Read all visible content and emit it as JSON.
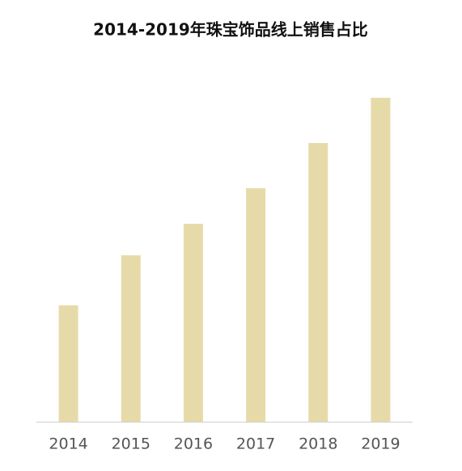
{
  "chart_data": {
    "type": "bar",
    "title": "2014-2019年珠宝饰品线上销售占比",
    "categories": [
      "2014",
      "2015",
      "2016",
      "2017",
      "2018",
      "2019"
    ],
    "values": [
      144,
      206,
      245,
      289,
      345,
      401
    ],
    "color": "#e6dba8",
    "ylim": [
      0,
      420
    ]
  }
}
